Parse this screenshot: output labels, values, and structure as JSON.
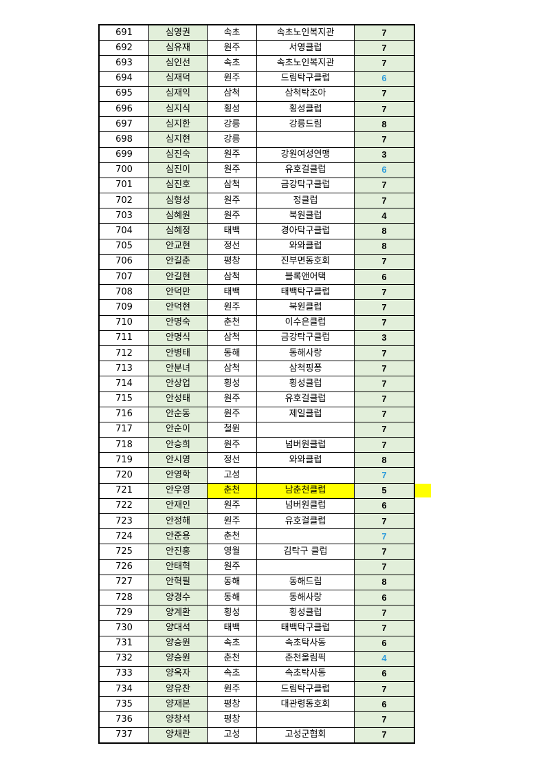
{
  "colors": {
    "name_bg": "#e2efda",
    "score_bg": "#e2efda",
    "highlight": "#ffff00",
    "blue_score": "#2e9cdb"
  },
  "rows": [
    {
      "no": "691",
      "name": "심영권",
      "city": "속초",
      "club": "속초노인복지관",
      "score": "7"
    },
    {
      "no": "692",
      "name": "심유재",
      "city": "원주",
      "club": "서영클럽",
      "score": "7"
    },
    {
      "no": "693",
      "name": "심인선",
      "city": "속초",
      "club": "속초노인복지관",
      "score": "7"
    },
    {
      "no": "694",
      "name": "심재덕",
      "city": "원주",
      "club": "드림탁구클럽",
      "score": "6",
      "blue": true
    },
    {
      "no": "695",
      "name": "심재익",
      "city": "삼척",
      "club": "삼척탁조아",
      "score": "7"
    },
    {
      "no": "696",
      "name": "심지식",
      "city": "횡성",
      "club": "횡성클럽",
      "score": "7"
    },
    {
      "no": "697",
      "name": "심지한",
      "city": "강릉",
      "club": "강릉드림",
      "score": "8"
    },
    {
      "no": "698",
      "name": "심지현",
      "city": "강릉",
      "club": "",
      "score": "7"
    },
    {
      "no": "699",
      "name": "심진숙",
      "city": "원주",
      "club": "강원여성연맹",
      "score": "3"
    },
    {
      "no": "700",
      "name": "심진이",
      "city": "원주",
      "club": "유호걸클럽",
      "score": "6",
      "blue": true
    },
    {
      "no": "701",
      "name": "심진호",
      "city": "삼척",
      "club": "금강탁구클럽",
      "score": "7"
    },
    {
      "no": "702",
      "name": "심형성",
      "city": "원주",
      "club": "정클럽",
      "score": "7"
    },
    {
      "no": "703",
      "name": "심혜원",
      "city": "원주",
      "club": "북원클럽",
      "score": "4"
    },
    {
      "no": "704",
      "name": "심혜정",
      "city": "태백",
      "club": "경아탁구클럽",
      "score": "8"
    },
    {
      "no": "705",
      "name": "안교현",
      "city": "정선",
      "club": "와와클럽",
      "score": "8"
    },
    {
      "no": "706",
      "name": "안길춘",
      "city": "평창",
      "club": "진부면동호회",
      "score": "7"
    },
    {
      "no": "707",
      "name": "안길현",
      "city": "삼척",
      "club": "블록앤어택",
      "score": "6"
    },
    {
      "no": "708",
      "name": "안덕만",
      "city": "태백",
      "club": "태백탁구클럽",
      "score": "7"
    },
    {
      "no": "709",
      "name": "안덕현",
      "city": "원주",
      "club": "북원클럽",
      "score": "7"
    },
    {
      "no": "710",
      "name": "안명숙",
      "city": "춘천",
      "club": "이수은클럽",
      "score": "7"
    },
    {
      "no": "711",
      "name": "안명식",
      "city": "삼척",
      "club": "금강탁구클럽",
      "score": "3"
    },
    {
      "no": "712",
      "name": "안병태",
      "city": "동해",
      "club": "동해사랑",
      "score": "7"
    },
    {
      "no": "713",
      "name": "안분녀",
      "city": "삼척",
      "club": "삼척핑퐁",
      "score": "7"
    },
    {
      "no": "714",
      "name": "안상업",
      "city": "횡성",
      "club": "횡성클럽",
      "score": "7"
    },
    {
      "no": "715",
      "name": "안성태",
      "city": "원주",
      "club": "유호걸클럽",
      "score": "7"
    },
    {
      "no": "716",
      "name": "안순동",
      "city": "원주",
      "club": "제일클럽",
      "score": "7"
    },
    {
      "no": "717",
      "name": "안순이",
      "city": "철원",
      "club": "",
      "score": "7"
    },
    {
      "no": "718",
      "name": "안승희",
      "city": "원주",
      "club": "넘버원클럽",
      "score": "7"
    },
    {
      "no": "719",
      "name": "안시영",
      "city": "정선",
      "club": "와와클럽",
      "score": "8"
    },
    {
      "no": "720",
      "name": "안영학",
      "city": "고성",
      "club": "",
      "score": "7",
      "blue": true
    },
    {
      "no": "721",
      "name": "안우영",
      "city": "춘천",
      "club": "남춘천클럽",
      "score": "5",
      "highlight": true
    },
    {
      "no": "722",
      "name": "안재인",
      "city": "원주",
      "club": "넘버원클럽",
      "score": "6"
    },
    {
      "no": "723",
      "name": "안정해",
      "city": "원주",
      "club": "유호걸클럽",
      "score": "7"
    },
    {
      "no": "724",
      "name": "안준용",
      "city": "춘천",
      "club": "",
      "score": "7",
      "blue": true
    },
    {
      "no": "725",
      "name": "안진홍",
      "city": "영월",
      "club": "김탁구 클럽",
      "score": "7"
    },
    {
      "no": "726",
      "name": "안태혁",
      "city": "원주",
      "club": "",
      "score": "7"
    },
    {
      "no": "727",
      "name": "안혁필",
      "city": "동해",
      "club": "동해드림",
      "score": "8"
    },
    {
      "no": "728",
      "name": "양경수",
      "city": "동해",
      "club": "동해사랑",
      "score": "6"
    },
    {
      "no": "729",
      "name": "양계환",
      "city": "횡성",
      "club": "횡성클럽",
      "score": "7"
    },
    {
      "no": "730",
      "name": "양대석",
      "city": "태백",
      "club": "태백탁구클럽",
      "score": "7"
    },
    {
      "no": "731",
      "name": "양승원",
      "city": "속초",
      "club": "속초탁사동",
      "score": "6"
    },
    {
      "no": "732",
      "name": "양승원",
      "city": "춘천",
      "club": "춘천올림픽",
      "score": "4",
      "blue": true
    },
    {
      "no": "733",
      "name": "양옥자",
      "city": "속초",
      "club": "속초탁사동",
      "score": "6"
    },
    {
      "no": "734",
      "name": "양유찬",
      "city": "원주",
      "club": "드림탁구클럽",
      "score": "7"
    },
    {
      "no": "735",
      "name": "양재본",
      "city": "평창",
      "club": "대관령동호회",
      "score": "6"
    },
    {
      "no": "736",
      "name": "양창석",
      "city": "평창",
      "club": "",
      "score": "7"
    },
    {
      "no": "737",
      "name": "양채란",
      "city": "고성",
      "club": "고성군협회",
      "score": "7"
    }
  ]
}
